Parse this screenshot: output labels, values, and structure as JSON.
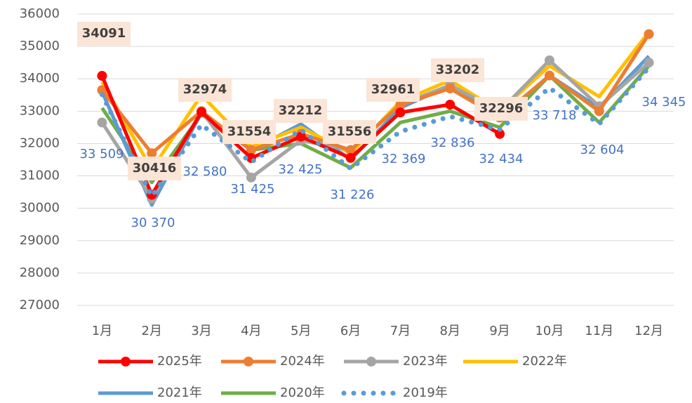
{
  "chart_data": {
    "type": "line",
    "categories": [
      "1月",
      "2月",
      "3月",
      "4月",
      "5月",
      "6月",
      "7月",
      "8月",
      "9月",
      "10月",
      "11月",
      "12月"
    ],
    "ylim": [
      27000,
      36000
    ],
    "yticks": [
      27000,
      28000,
      29000,
      30000,
      31000,
      32000,
      33000,
      34000,
      35000,
      36000
    ],
    "grid": true,
    "legend": "bottom",
    "series": [
      {
        "name": "2025年",
        "color": "#ff0000",
        "marker": true,
        "data_labels": true,
        "values": [
          34091,
          30416,
          32974,
          31554,
          32212,
          31556,
          32961,
          33202,
          32296,
          null,
          null,
          null
        ]
      },
      {
        "name": "2024年",
        "color": "#ed7d31",
        "marker": true,
        "values": [
          33650,
          31700,
          33000,
          31800,
          32300,
          31800,
          33200,
          33700,
          32800,
          34100,
          33000,
          35380
        ]
      },
      {
        "name": "2023年",
        "color": "#a5a5a5",
        "marker": true,
        "values": [
          32650,
          30300,
          33000,
          30950,
          32100,
          31800,
          33200,
          33800,
          33000,
          34570,
          33150,
          34500
        ]
      },
      {
        "name": "2022年",
        "color": "#ffc000",
        "values": [
          33900,
          31200,
          33500,
          31900,
          32500,
          31700,
          33300,
          33950,
          33000,
          34400,
          33450,
          35450
        ]
      },
      {
        "name": "2021年",
        "color": "#5b9bd5",
        "values": [
          33600,
          30100,
          32950,
          31800,
          32600,
          31500,
          33100,
          33800,
          32800,
          34100,
          33100,
          34700
        ]
      },
      {
        "name": "2020年",
        "color": "#70ad47",
        "values": [
          33100,
          30800,
          32900,
          31800,
          32000,
          31250,
          32650,
          33000,
          32500,
          34100,
          32650,
          34400
        ]
      },
      {
        "name": "2019年",
        "color": "#5b9bd5",
        "line_style": "dotted",
        "values": [
          33509,
          30370,
          32580,
          31425,
          32425,
          31226,
          32369,
          32836,
          32434,
          33718,
          32604,
          34345
        ],
        "value_labels": [
          "33 509",
          "30 370",
          "32 580",
          "31 425",
          "32 425",
          "31 226",
          "32 369",
          "32 836",
          "32 434",
          "33 718",
          "32 604",
          "34 345"
        ]
      }
    ]
  }
}
